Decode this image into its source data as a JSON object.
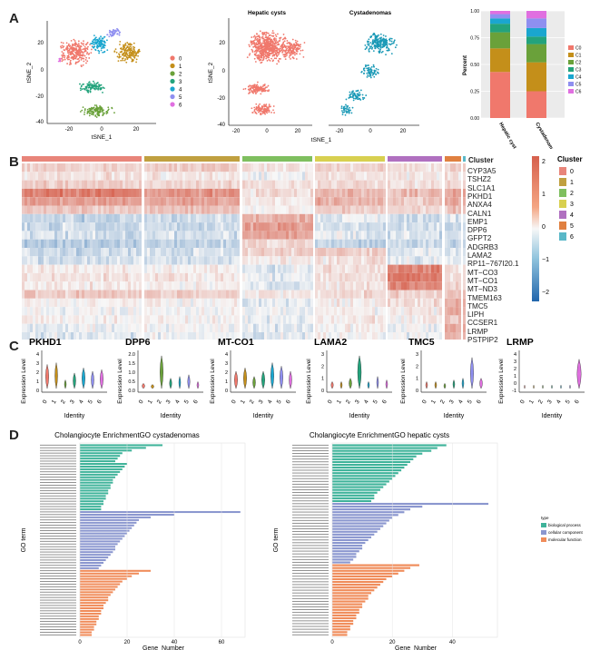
{
  "panels": {
    "a": "A",
    "b": "B",
    "c": "C",
    "d": "D"
  },
  "panel_a": {
    "tsne1": {
      "xlabel": "tSNE_1",
      "ylabel": "tSNE_2",
      "yticks": [
        "20",
        "0",
        "-20",
        "-40"
      ],
      "xticks": [
        "-20",
        "0",
        "20"
      ],
      "legend": [
        "0",
        "1",
        "2",
        "3",
        "4",
        "5",
        "6"
      ],
      "colors": [
        "#f0786c",
        "#c48f1a",
        "#6aa13a",
        "#23a37c",
        "#1aa6cf",
        "#8f8ff0",
        "#e06fe0"
      ]
    },
    "tsne2": {
      "title_left": "Hepatic cysts",
      "title_right": "Cystadenomas",
      "xlabel": "tSNE_1",
      "ylabel": "tSNE_2",
      "yticks": [
        "20",
        "0",
        "-20",
        "-40"
      ],
      "xticks_left": [
        "-20",
        "0",
        "20"
      ],
      "xticks_right": [
        "-20",
        "0",
        "20"
      ],
      "left_color": "#f0786c",
      "right_color": "#1a99b6"
    },
    "stacked": {
      "ylabel": "Percent",
      "yticks": [
        "1.00",
        "0.75",
        "0.50",
        "0.25",
        "0.00"
      ],
      "xticks": [
        "Hepatic cyst",
        "Cystadenoma"
      ],
      "legend": [
        "C0",
        "C1",
        "C2",
        "C3",
        "C4",
        "C5",
        "C6"
      ],
      "colors": [
        "#f0786c",
        "#c48f1a",
        "#6aa13a",
        "#23a37c",
        "#1aa6cf",
        "#8f8ff0",
        "#e06fe0"
      ]
    }
  },
  "chart_data": [
    {
      "type": "bar",
      "stacked": true,
      "categories": [
        "Hepatic cyst",
        "Cystadenoma"
      ],
      "series": [
        {
          "name": "C0",
          "values": [
            0.43,
            0.25
          ]
        },
        {
          "name": "C1",
          "values": [
            0.22,
            0.27
          ]
        },
        {
          "name": "C2",
          "values": [
            0.15,
            0.17
          ]
        },
        {
          "name": "C3",
          "values": [
            0.08,
            0.07
          ]
        },
        {
          "name": "C4",
          "values": [
            0.05,
            0.08
          ]
        },
        {
          "name": "C5",
          "values": [
            0.04,
            0.09
          ]
        },
        {
          "name": "C6",
          "values": [
            0.03,
            0.07
          ]
        }
      ],
      "ylabel": "Percent",
      "ylim": [
        0,
        1
      ]
    },
    {
      "type": "bar",
      "orientation": "horizontal",
      "title": "Cholangiocyte EnrichmentGO cystadenomas",
      "xlabel": "Gene_Number",
      "ylabel": "GO term",
      "xticks": [
        "0",
        "20",
        "40",
        "60"
      ],
      "xlim": [
        0,
        70
      ],
      "series": [
        {
          "name": "biological process",
          "values": [
            35,
            28,
            22,
            18,
            17,
            16,
            15,
            20,
            19,
            18,
            17,
            16,
            15,
            14,
            14,
            13,
            13,
            12,
            12,
            11,
            11,
            10,
            10,
            9,
            9
          ]
        },
        {
          "name": "cellular component",
          "values": [
            68,
            40,
            30,
            25,
            24,
            23,
            22,
            21,
            20,
            19,
            18,
            17,
            16,
            15,
            15,
            14,
            13,
            12,
            11,
            10,
            9,
            8
          ]
        },
        {
          "name": "molecular function",
          "values": [
            30,
            25,
            22,
            20,
            18,
            17,
            16,
            15,
            14,
            13,
            12,
            12,
            11,
            10,
            10,
            9,
            9,
            8,
            8,
            7,
            7,
            6,
            6,
            5,
            5
          ]
        }
      ]
    },
    {
      "type": "bar",
      "orientation": "horizontal",
      "title": "Cholangiocyte EnrichmentGO hepatic cysts",
      "xlabel": "Gene_Number",
      "ylabel": "GO term",
      "xticks": [
        "0",
        "20",
        "40"
      ],
      "xlim": [
        0,
        55
      ],
      "series": [
        {
          "name": "biological process",
          "values": [
            38,
            35,
            33,
            30,
            28,
            27,
            26,
            25,
            24,
            23,
            22,
            21,
            20,
            19,
            18,
            17,
            16,
            15,
            14,
            14,
            13
          ]
        },
        {
          "name": "cellular component",
          "values": [
            52,
            30,
            26,
            24,
            22,
            20,
            19,
            18,
            17,
            16,
            15,
            14,
            13,
            12,
            11,
            10,
            10,
            9,
            8,
            8,
            7,
            6
          ]
        },
        {
          "name": "molecular function",
          "values": [
            29,
            26,
            24,
            22,
            20,
            18,
            17,
            16,
            15,
            14,
            13,
            12,
            12,
            11,
            10,
            10,
            9,
            9,
            8,
            8,
            7,
            7,
            6,
            6,
            5,
            5
          ]
        }
      ]
    }
  ],
  "panel_b": {
    "genes": [
      "CYP3A5",
      "TSHZ2",
      "SLC1A1",
      "PKHD1",
      "ANXA4",
      "CALN1",
      "EMP1",
      "DPP6",
      "GFPT2",
      "ADGRB3",
      "LAMA2",
      "RP11−767I20.1",
      "MT−CO3",
      "MT−CO1",
      "MT−ND3",
      "TMEM163",
      "TMC5",
      "LIPH",
      "CCSER1",
      "LRMP",
      "PSTPIP2"
    ],
    "scale_ticks": [
      "2",
      "1",
      "0",
      "−1",
      "−2"
    ],
    "cluster_title_left": "Cluster",
    "cluster_title_right": "Cluster",
    "cluster_legend": [
      "0",
      "1",
      "2",
      "3",
      "4",
      "5",
      "6"
    ],
    "cluster_colors": [
      "#e8857a",
      "#c0a040",
      "#7fbf5f",
      "#d8d050",
      "#b070c0",
      "#e08040",
      "#5ab8c8"
    ]
  },
  "panel_c": {
    "ylabel": "Expression Level",
    "xlabel": "Identity",
    "identity_ticks": [
      "0",
      "1",
      "2",
      "3",
      "4",
      "5",
      "6"
    ],
    "genes": [
      {
        "name": "PKHD1",
        "yticks": [
          "4",
          "3",
          "2",
          "1",
          "0"
        ]
      },
      {
        "name": "DPP6",
        "yticks": [
          "2.0",
          "1.5",
          "1.0",
          "0.5",
          "0.0"
        ]
      },
      {
        "name": "MT-CO1",
        "yticks": [
          "4",
          "3",
          "2",
          "1",
          "0"
        ]
      },
      {
        "name": "LAMA2",
        "yticks": [
          "3",
          "2",
          "1",
          "0"
        ]
      },
      {
        "name": "TMC5",
        "yticks": [
          "3",
          "2",
          "1",
          "0"
        ]
      },
      {
        "name": "LRMP",
        "yticks": [
          "4",
          "3",
          "2",
          "1",
          "0",
          "-1"
        ]
      }
    ]
  },
  "panel_d": {
    "legend_title": "type",
    "legend": [
      "biological process",
      "cellular component",
      "molecular function"
    ],
    "colors": [
      "#3fb39a",
      "#8b97cf",
      "#f08c5a"
    ]
  }
}
